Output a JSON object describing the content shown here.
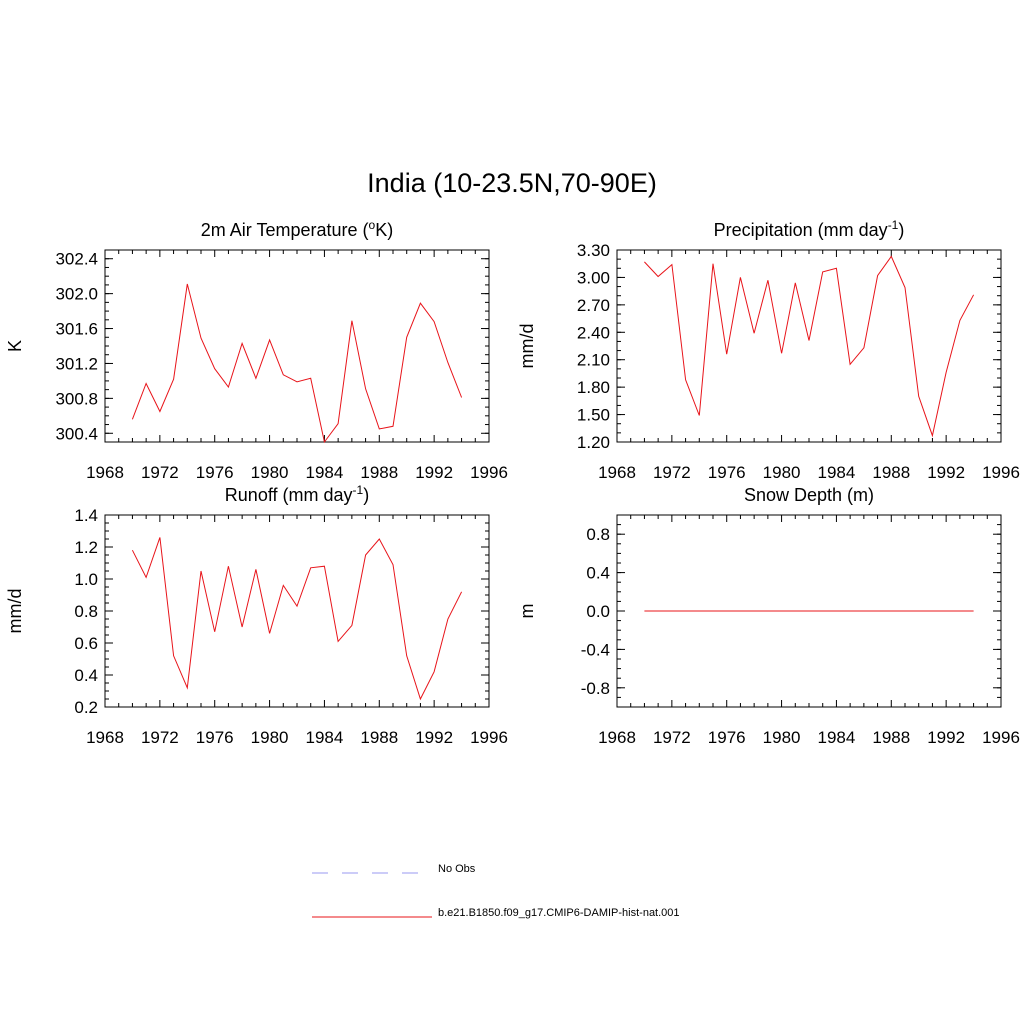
{
  "title": "India (10-23.5N,70-90E)",
  "colors": {
    "model": "#e8141a",
    "obs": "#9a9af0"
  },
  "legend": [
    {
      "label": "No Obs",
      "style": "dashed",
      "color": "#9a9af0"
    },
    {
      "label": "b.e21.B1850.f09_g17.CMIP6-DAMIP-hist-nat.001",
      "style": "solid",
      "color": "#e8141a"
    }
  ],
  "chart_data": [
    {
      "type": "line",
      "title": "2m Air Temperature (",
      "title_sup": "o",
      "title_suffix": "K)",
      "title_mid": "",
      "ylabel": "K",
      "xlim": [
        1968,
        1996
      ],
      "ylim": [
        300.3,
        302.5
      ],
      "xticks": [
        1968,
        1972,
        1976,
        1980,
        1984,
        1988,
        1992,
        1996
      ],
      "xtick_labels": [
        "1968",
        "1972",
        "1976",
        "1980",
        "1984",
        "1988",
        "1992",
        "1996"
      ],
      "yticks": [
        300.4,
        300.8,
        301.2,
        301.6,
        302.0,
        302.4
      ],
      "ytick_labels": [
        "300.4",
        "300.8",
        "301.2",
        "301.6",
        "302.0",
        "302.4"
      ],
      "yminor": 0.1,
      "series": [
        {
          "x": [
            1970,
            1971,
            1972,
            1973,
            1974,
            1975,
            1976,
            1977,
            1978,
            1979,
            1980,
            1981,
            1982,
            1983,
            1984,
            1985,
            1986,
            1987,
            1988,
            1989,
            1990,
            1991,
            1992,
            1993,
            1994
          ],
          "y": [
            300.56,
            300.97,
            300.65,
            301.02,
            302.11,
            301.49,
            301.14,
            300.93,
            301.43,
            301.03,
            301.47,
            301.07,
            300.99,
            301.03,
            300.3,
            300.51,
            301.69,
            300.91,
            300.45,
            300.48,
            301.5,
            301.89,
            301.68,
            301.21,
            300.81
          ]
        }
      ]
    },
    {
      "type": "line",
      "title": "Precipitation (mm day",
      "title_sup": "-1",
      "title_suffix": ")",
      "ylabel": "mm/d",
      "xlim": [
        1968,
        1996
      ],
      "ylim": [
        1.2,
        3.3
      ],
      "xticks": [
        1968,
        1972,
        1976,
        1980,
        1984,
        1988,
        1992,
        1996
      ],
      "xtick_labels": [
        "1968",
        "1972",
        "1976",
        "1980",
        "1984",
        "1988",
        "1992",
        "1996"
      ],
      "yticks": [
        1.2,
        1.5,
        1.8,
        2.1,
        2.4,
        2.7,
        3.0,
        3.3
      ],
      "ytick_labels": [
        "1.20",
        "1.50",
        "1.80",
        "2.10",
        "2.40",
        "2.70",
        "3.00",
        "3.30"
      ],
      "yminor": 0.1,
      "series": [
        {
          "x": [
            1970,
            1971,
            1972,
            1973,
            1974,
            1975,
            1976,
            1977,
            1978,
            1979,
            1980,
            1981,
            1982,
            1983,
            1984,
            1985,
            1986,
            1987,
            1988,
            1989,
            1990,
            1991,
            1992,
            1993,
            1994
          ],
          "y": [
            3.17,
            3.01,
            3.14,
            1.88,
            1.49,
            3.15,
            2.16,
            3.0,
            2.39,
            2.97,
            2.17,
            2.94,
            2.31,
            3.06,
            3.1,
            2.05,
            2.23,
            3.02,
            3.23,
            2.89,
            1.7,
            1.27,
            1.96,
            2.53,
            2.81
          ]
        }
      ]
    },
    {
      "type": "line",
      "title": "Runoff (mm day",
      "title_sup": "-1",
      "title_suffix": ")",
      "ylabel": "mm/d",
      "xlim": [
        1968,
        1996
      ],
      "ylim": [
        0.2,
        1.4
      ],
      "xticks": [
        1968,
        1972,
        1976,
        1980,
        1984,
        1988,
        1992,
        1996
      ],
      "xtick_labels": [
        "1968",
        "1972",
        "1976",
        "1980",
        "1984",
        "1988",
        "1992",
        "1996"
      ],
      "yticks": [
        0.2,
        0.4,
        0.6,
        0.8,
        1.0,
        1.2,
        1.4
      ],
      "ytick_labels": [
        "0.2",
        "0.4",
        "0.6",
        "0.8",
        "1.0",
        "1.2",
        "1.4"
      ],
      "yminor": 0.05,
      "series": [
        {
          "x": [
            1970,
            1971,
            1972,
            1973,
            1974,
            1975,
            1976,
            1977,
            1978,
            1979,
            1980,
            1981,
            1982,
            1983,
            1984,
            1985,
            1986,
            1987,
            1988,
            1989,
            1990,
            1991,
            1992,
            1993,
            1994
          ],
          "y": [
            1.18,
            1.01,
            1.26,
            0.52,
            0.32,
            1.05,
            0.67,
            1.08,
            0.7,
            1.06,
            0.66,
            0.96,
            0.83,
            1.07,
            1.08,
            0.61,
            0.71,
            1.15,
            1.25,
            1.09,
            0.52,
            0.25,
            0.42,
            0.75,
            0.92
          ]
        }
      ]
    },
    {
      "type": "line",
      "title": "Snow Depth (m)",
      "title_sup": "",
      "title_suffix": "",
      "ylabel": "m",
      "xlim": [
        1968,
        1996
      ],
      "ylim": [
        -1.0,
        1.0
      ],
      "xticks": [
        1968,
        1972,
        1976,
        1980,
        1984,
        1988,
        1992,
        1996
      ],
      "xtick_labels": [
        "1968",
        "1972",
        "1976",
        "1980",
        "1984",
        "1988",
        "1992",
        "1996"
      ],
      "yticks": [
        -0.8,
        -0.4,
        0.0,
        0.4,
        0.8
      ],
      "ytick_labels": [
        "-0.8",
        "-0.4",
        "0.0",
        "0.4",
        "0.8"
      ],
      "yminor": 0.1,
      "series": [
        {
          "x": [
            1970,
            1971,
            1972,
            1973,
            1974,
            1975,
            1976,
            1977,
            1978,
            1979,
            1980,
            1981,
            1982,
            1983,
            1984,
            1985,
            1986,
            1987,
            1988,
            1989,
            1990,
            1991,
            1992,
            1993,
            1994
          ],
          "y": [
            0,
            0,
            0,
            0,
            0,
            0,
            0,
            0,
            0,
            0,
            0,
            0,
            0,
            0,
            0,
            0,
            0,
            0,
            0,
            0,
            0,
            0,
            0,
            0,
            0
          ]
        }
      ]
    }
  ]
}
